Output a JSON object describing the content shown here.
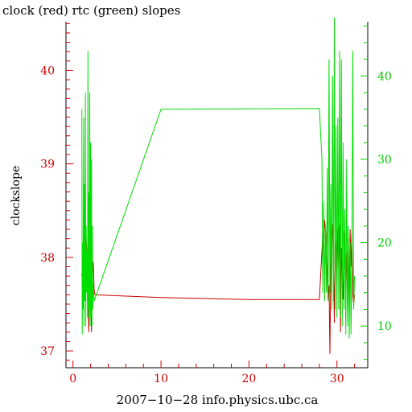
{
  "chart_data": {
    "type": "line",
    "title": "clock (red) rtc (green) slopes",
    "xlabel": "2007−10−28 info.physics.ubc.ca",
    "ylabel": "clockslope",
    "xlim": [
      -0.8,
      33.5
    ],
    "xticks": [
      0,
      10,
      20,
      30
    ],
    "xtick_labels": [
      "0",
      "10",
      "20",
      "30"
    ],
    "ylim_left": [
      36.82,
      40.52
    ],
    "yticks_left": [
      37,
      38,
      39,
      40
    ],
    "ytick_labels_left": [
      "37",
      "38",
      "39",
      "40"
    ],
    "ylim_right": [
      5.0,
      46.5
    ],
    "yticks_right": [
      10,
      20,
      30,
      40
    ],
    "ytick_labels_right": [
      "10",
      "20",
      "30",
      "40"
    ],
    "grid": false,
    "colors": {
      "clock": "#cc0000",
      "rtc": "#00dd00",
      "axis_left": "#cc0000",
      "axis_right": "#00cc00"
    },
    "series": [
      {
        "axis": "left",
        "color": "#cc0000",
        "x": [
          1.0,
          1.1,
          1.2,
          1.3,
          1.4,
          1.5,
          1.6,
          1.7,
          1.8,
          1.9,
          2.0,
          2.1,
          2.2,
          2.3,
          2.4,
          2.5,
          10,
          20,
          28.0,
          28.4,
          28.5,
          28.6,
          28.7,
          28.8,
          28.9,
          29.0,
          29.1,
          29.2,
          29.3,
          29.4,
          29.5,
          29.6,
          29.7,
          29.8,
          29.9,
          30.0,
          30.1,
          30.2,
          30.3,
          30.4,
          30.5,
          30.6,
          30.7,
          30.8,
          30.9,
          31.0,
          31.1,
          31.2,
          31.3,
          31.4,
          31.5,
          31.6,
          31.7,
          31.8,
          31.9,
          32.0
        ],
        "y": [
          37.8,
          37.95,
          38.05,
          37.85,
          38.1,
          38.2,
          38.0,
          37.6,
          37.2,
          38.1,
          37.9,
          37.2,
          37.8,
          37.95,
          37.65,
          37.6,
          37.57,
          37.55,
          37.55,
          38.25,
          38.1,
          38.4,
          38.3,
          38.15,
          37.8,
          37.55,
          37.7,
          36.97,
          38.0,
          38.2,
          38.35,
          37.9,
          37.3,
          38.25,
          38.1,
          37.6,
          38.3,
          37.9,
          38.35,
          37.2,
          38.1,
          37.8,
          37.55,
          38.2,
          38.3,
          37.7,
          38.05,
          37.4,
          38.2,
          37.5,
          38.3,
          37.9,
          38.25,
          37.6,
          37.5,
          37.6
        ]
      },
      {
        "axis": "right",
        "color": "#00dd00",
        "x": [
          1.0,
          1.05,
          1.1,
          1.15,
          1.2,
          1.25,
          1.3,
          1.35,
          1.4,
          1.45,
          1.5,
          1.55,
          1.6,
          1.65,
          1.7,
          1.75,
          1.8,
          1.85,
          1.9,
          1.95,
          2.0,
          2.05,
          2.1,
          2.15,
          2.2,
          2.25,
          2.3,
          2.4,
          10,
          20,
          28.0,
          28.3,
          28.4,
          28.5,
          28.6,
          28.7,
          28.8,
          28.9,
          29.0,
          29.1,
          29.2,
          29.3,
          29.4,
          29.5,
          29.6,
          29.7,
          29.8,
          29.9,
          30.0,
          30.1,
          30.2,
          30.3,
          30.4,
          30.5,
          30.6,
          30.7,
          30.8,
          30.9,
          31.0,
          31.1,
          31.2,
          31.3,
          31.4,
          31.5,
          31.6,
          31.7,
          31.8,
          31.9,
          32.0
        ],
        "y": [
          36.0,
          9.0,
          20.0,
          12.0,
          35.0,
          10.0,
          27.0,
          13.0,
          38.0,
          10.0,
          22.0,
          14.0,
          19.0,
          11.0,
          43.0,
          11.0,
          26.0,
          12.0,
          38.0,
          10.0,
          32.0,
          11.0,
          30.0,
          10.0,
          22.0,
          12.0,
          15.0,
          13.0,
          36.0,
          36.05,
          36.1,
          30.0,
          14.0,
          25.0,
          13.0,
          22.0,
          14.0,
          29.0,
          13.0,
          42.0,
          14.0,
          27.0,
          12.0,
          40.0,
          13.0,
          47.0,
          12.0,
          34.0,
          11.0,
          35.0,
          12.0,
          43.0,
          11.0,
          42.0,
          10.0,
          32.0,
          12.0,
          24.0,
          9.0,
          30.0,
          10.0,
          22.0,
          8.5,
          20.0,
          9.0,
          18.0,
          43.0,
          12.0,
          16.0
        ]
      }
    ]
  }
}
